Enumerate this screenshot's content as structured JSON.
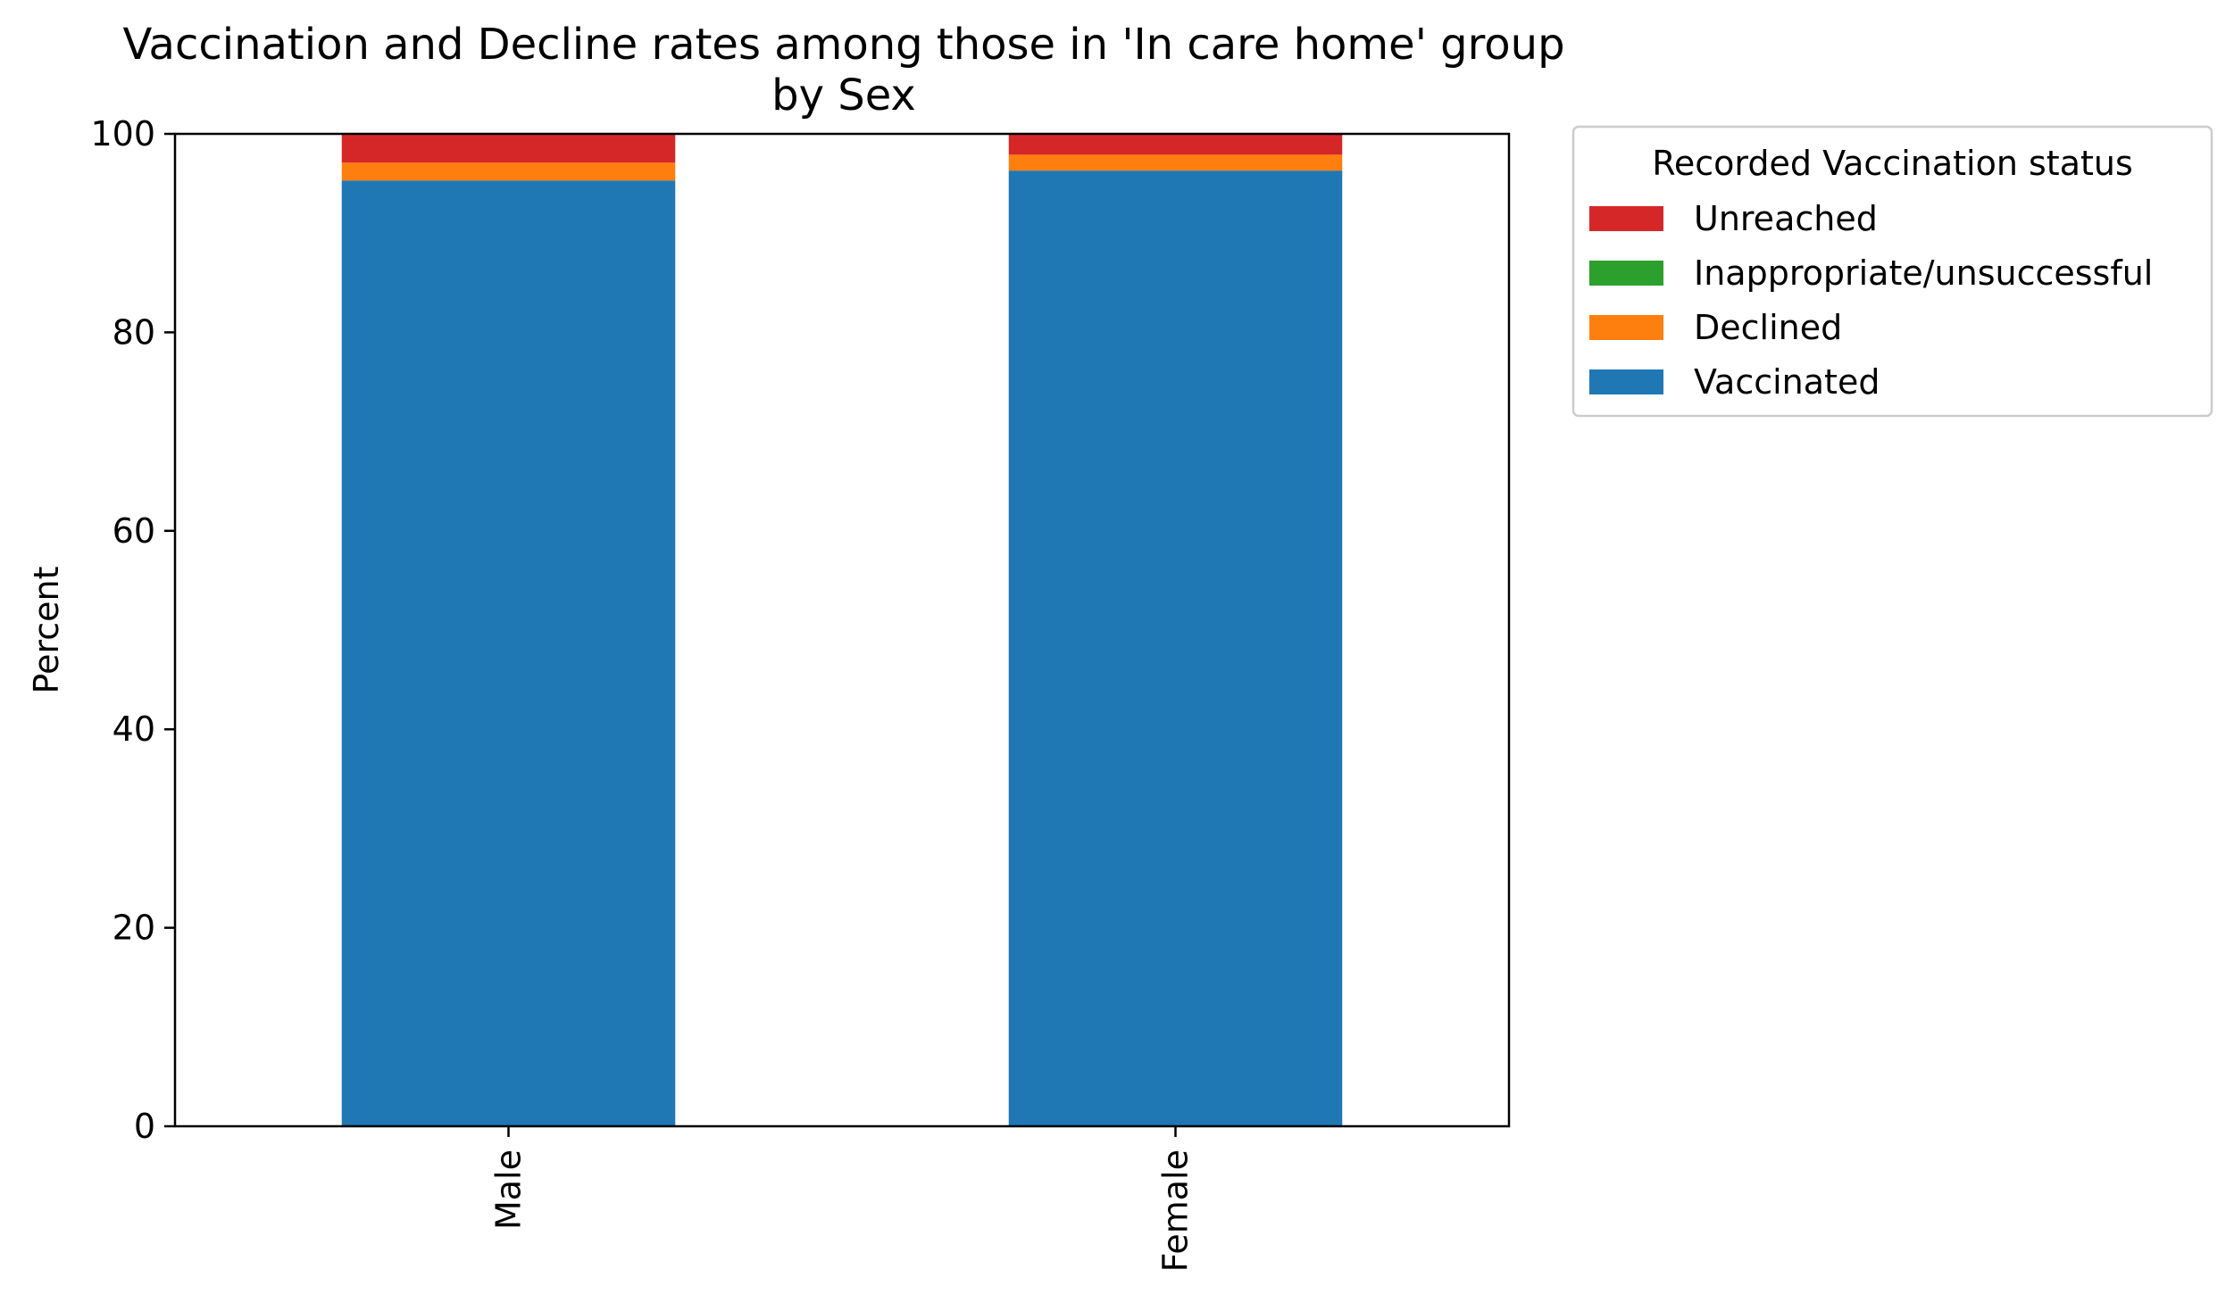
{
  "chart_data": {
    "type": "bar",
    "stacked": true,
    "title": "Vaccination and Decline rates among those in 'In care home' group",
    "subtitle": "by Sex",
    "xlabel": "",
    "ylabel": "Percent",
    "ylim": [
      0,
      100
    ],
    "yticks": [
      "0",
      "20",
      "40",
      "60",
      "80",
      "100"
    ],
    "categories": [
      "Male",
      "Female"
    ],
    "series": [
      {
        "name": "Vaccinated",
        "color": "#1f77b4",
        "values": [
          95.3,
          96.3
        ]
      },
      {
        "name": "Declined",
        "color": "#ff7f0e",
        "values": [
          1.8,
          1.6
        ]
      },
      {
        "name": "Inappropriate/unsuccessful",
        "color": "#2ca02c",
        "values": [
          0.0,
          0.0
        ]
      },
      {
        "name": "Unreached",
        "color": "#d62728",
        "values": [
          2.9,
          2.1
        ]
      }
    ],
    "legend": {
      "title": "Recorded Vaccination status",
      "position": "outside-right-top",
      "order": [
        "Unreached",
        "Inappropriate/unsuccessful",
        "Declined",
        "Vaccinated"
      ]
    },
    "grid": false
  }
}
